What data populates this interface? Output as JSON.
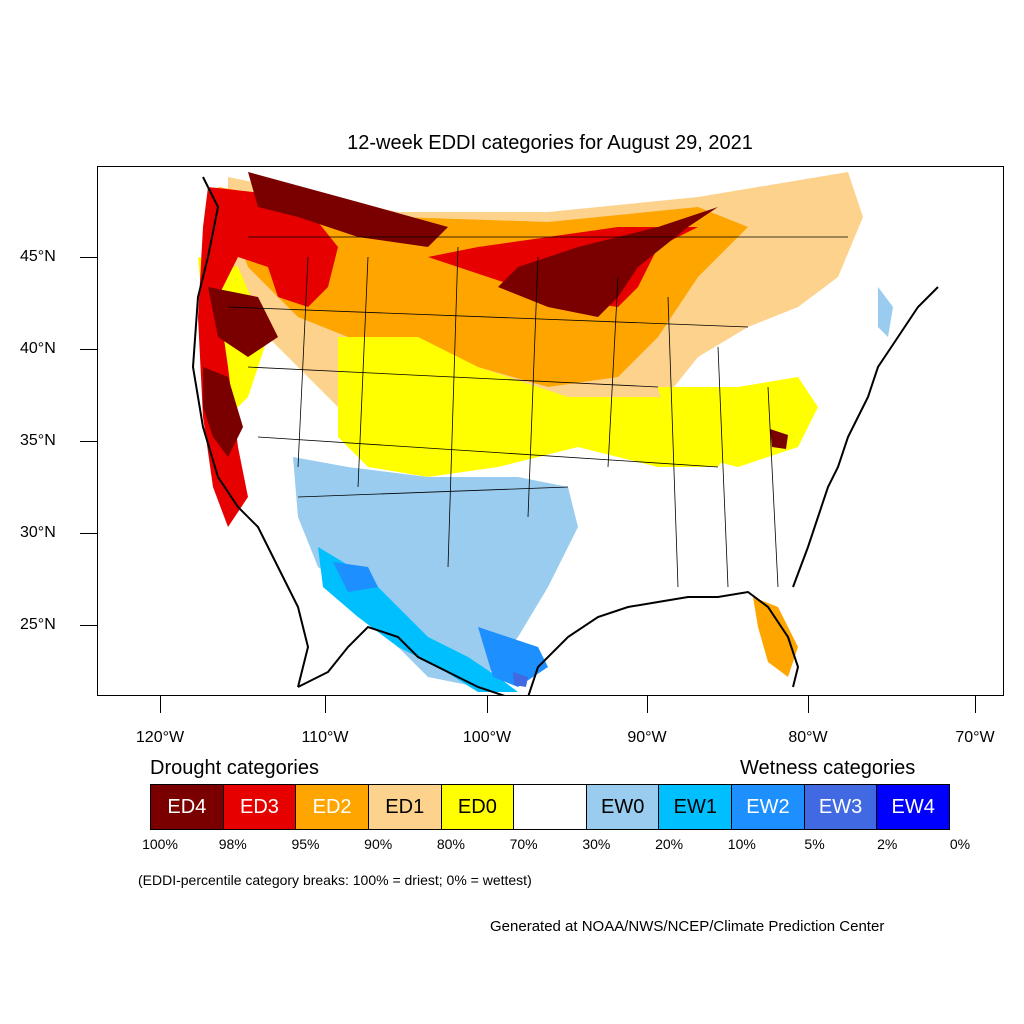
{
  "title": "12-week EDDI categories for August 29, 2021",
  "map": {
    "latitude_labels": [
      "45°N",
      "40°N",
      "35°N",
      "30°N",
      "25°N"
    ],
    "longitude_labels": [
      "120°W",
      "110°W",
      "100°W",
      "90°W",
      "80°W",
      "70°W"
    ]
  },
  "legend": {
    "drought_heading": "Drought categories",
    "wetness_heading": "Wetness categories",
    "categories": [
      {
        "label": "ED4",
        "color": "#7a0000",
        "text_color": "#ffffff"
      },
      {
        "label": "ED3",
        "color": "#e60000",
        "text_color": "#ffffff"
      },
      {
        "label": "ED2",
        "color": "#ffa500",
        "text_color": "#ffffff"
      },
      {
        "label": "ED1",
        "color": "#fcd28c",
        "text_color": "#000000"
      },
      {
        "label": "ED0",
        "color": "#ffff00",
        "text_color": "#000000"
      },
      {
        "label": "",
        "color": "#ffffff",
        "text_color": "#000000"
      },
      {
        "label": "EW0",
        "color": "#99ccee",
        "text_color": "#000000"
      },
      {
        "label": "EW1",
        "color": "#00bfff",
        "text_color": "#000000"
      },
      {
        "label": "EW2",
        "color": "#1e8fff",
        "text_color": "#ffffff"
      },
      {
        "label": "EW3",
        "color": "#4169e1",
        "text_color": "#ffffff"
      },
      {
        "label": "EW4",
        "color": "#0000ff",
        "text_color": "#ffffff"
      }
    ],
    "percentiles": [
      "100%",
      "98%",
      "95%",
      "90%",
      "80%",
      "70%",
      "30%",
      "20%",
      "10%",
      "5%",
      "2%",
      "0%"
    ]
  },
  "note": "(EDDI-percentile category breaks: 100% = driest; 0% = wettest)",
  "credit": "Generated at NOAA/NWS/NCEP/Climate Prediction Center"
}
